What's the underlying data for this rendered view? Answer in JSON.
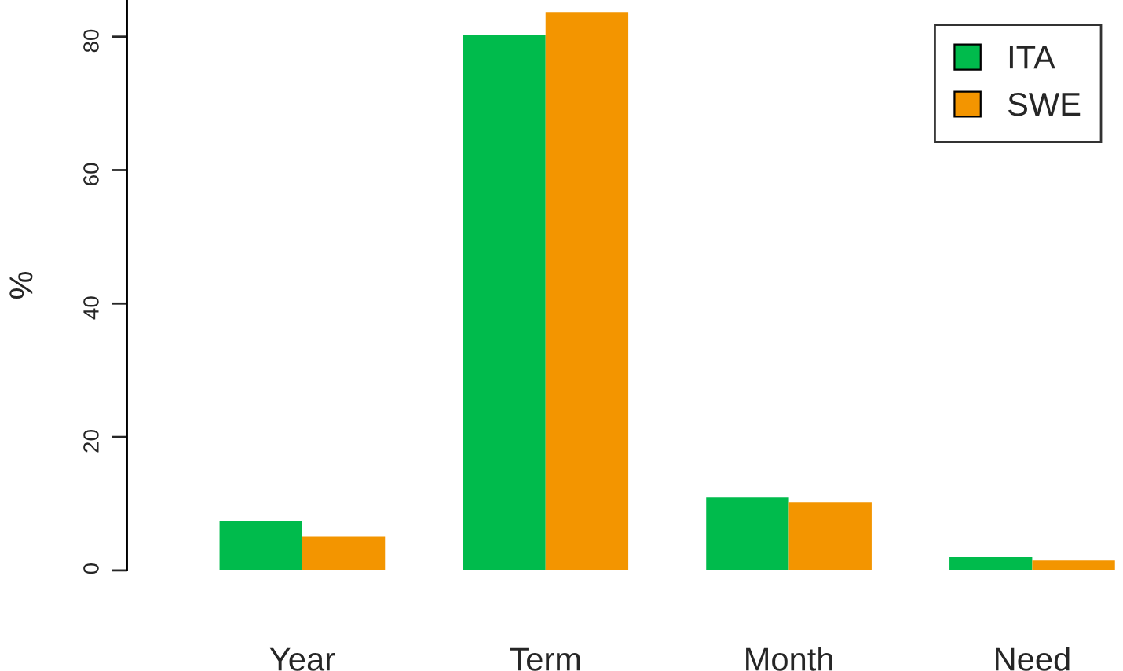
{
  "chart_data": {
    "type": "bar",
    "ylabel": "%",
    "categories": [
      "Year",
      "Term",
      "Month",
      "Need"
    ],
    "series": [
      {
        "name": "ITA",
        "color": "#00bb4c",
        "values": [
          7.4,
          80.2,
          10.9,
          2.0
        ]
      },
      {
        "name": "SWE",
        "color": "#f39500",
        "values": [
          5.1,
          83.7,
          10.2,
          1.5
        ]
      }
    ],
    "ylim": [
      0,
      85.5
    ],
    "yticks": [
      0,
      20,
      40,
      60,
      80
    ],
    "grid": false,
    "legend": "top right"
  }
}
